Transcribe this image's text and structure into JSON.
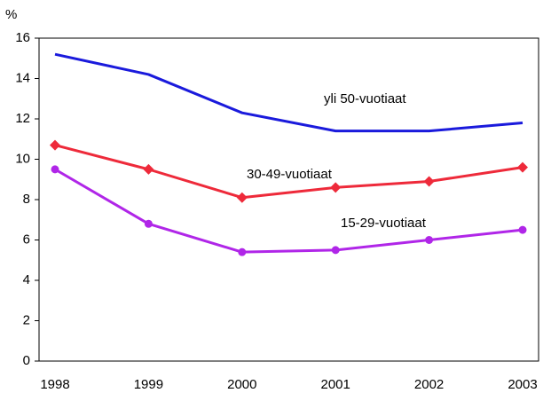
{
  "chart_data": {
    "type": "line",
    "y_label": "%",
    "categories": [
      "1998",
      "1999",
      "2000",
      "2001",
      "2002",
      "2003"
    ],
    "series": [
      {
        "name": "yli 50-vuotiaat",
        "color": "#1a1adc",
        "marker": "none",
        "values": [
          15.2,
          14.2,
          12.3,
          11.4,
          11.4,
          11.8
        ]
      },
      {
        "name": "30-49-vuotiaat",
        "color": "#ee2a3a",
        "marker": "diamond",
        "values": [
          10.7,
          9.5,
          8.1,
          8.6,
          8.9,
          9.6
        ]
      },
      {
        "name": "15-29-vuotiaat",
        "color": "#b026e8",
        "marker": "circle",
        "values": [
          9.5,
          6.8,
          5.4,
          5.5,
          6.0,
          6.5
        ]
      }
    ],
    "ylim": [
      0,
      16
    ],
    "yticks": [
      0,
      2,
      4,
      6,
      8,
      10,
      12,
      14,
      16
    ],
    "grid": false
  }
}
